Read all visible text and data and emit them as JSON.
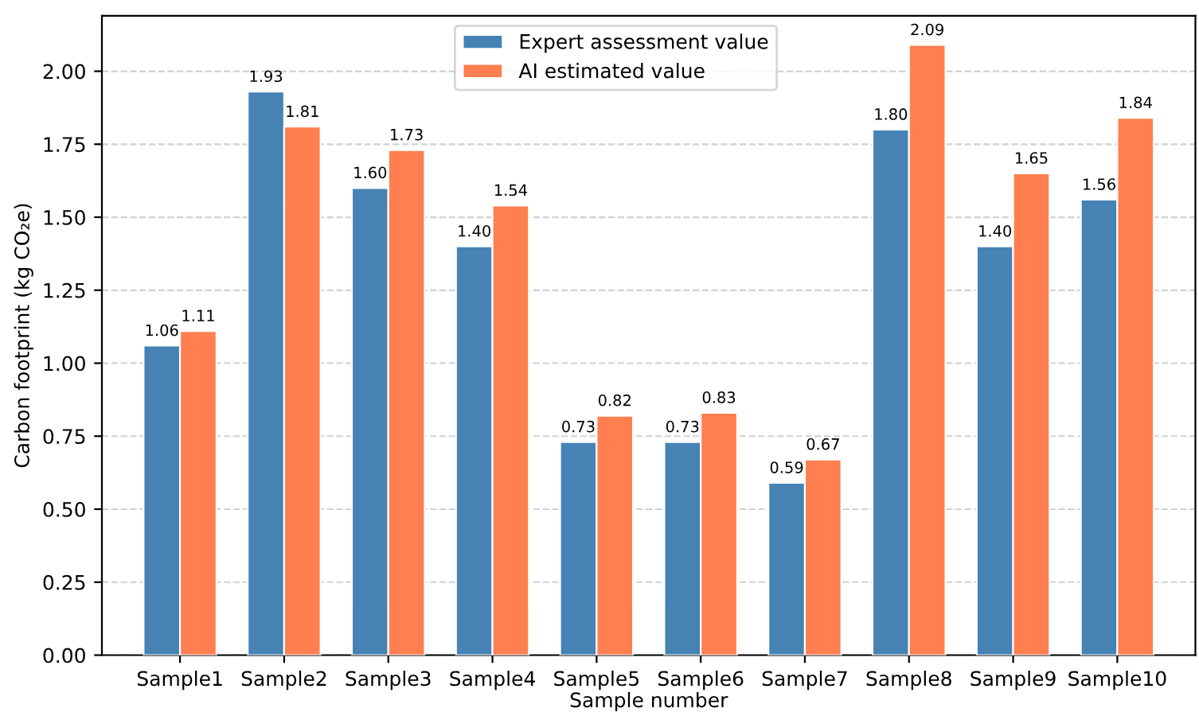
{
  "chart_data": {
    "type": "bar",
    "xlabel": "Sample number",
    "ylabel": "Carbon footprint (kg CO₂e)",
    "categories": [
      "Sample1",
      "Sample2",
      "Sample3",
      "Sample4",
      "Sample5",
      "Sample6",
      "Sample7",
      "Sample8",
      "Sample9",
      "Sample10"
    ],
    "series": [
      {
        "name": "Expert assessment value",
        "color": "#4682b4",
        "values": [
          1.06,
          1.93,
          1.6,
          1.4,
          0.73,
          0.73,
          0.59,
          1.8,
          1.4,
          1.56
        ],
        "value_labels": [
          "1.06",
          "1.93",
          "1.60",
          "1.40",
          "0.73",
          "0.73",
          "0.59",
          "1.80",
          "1.40",
          "1.56"
        ]
      },
      {
        "name": "AI estimated value",
        "color": "#ff7f50",
        "values": [
          1.11,
          1.81,
          1.73,
          1.54,
          0.82,
          0.83,
          0.67,
          2.09,
          1.65,
          1.84
        ],
        "value_labels": [
          "1.11",
          "1.81",
          "1.73",
          "1.54",
          "0.82",
          "0.83",
          "0.67",
          "2.09",
          "1.65",
          "1.84"
        ]
      }
    ],
    "ylim": [
      0,
      2.19
    ],
    "yticks": [
      {
        "value": 0,
        "label": "0.00"
      },
      {
        "value": 0.25,
        "label": "0.25"
      },
      {
        "value": 0.5,
        "label": "0.50"
      },
      {
        "value": 0.75,
        "label": "0.75"
      },
      {
        "value": 1,
        "label": "1.00"
      },
      {
        "value": 1.25,
        "label": "1.25"
      },
      {
        "value": 1.5,
        "label": "1.50"
      },
      {
        "value": 1.75,
        "label": "1.75"
      },
      {
        "value": 2,
        "label": "2.00"
      }
    ],
    "grid": "y",
    "legend": "top"
  }
}
